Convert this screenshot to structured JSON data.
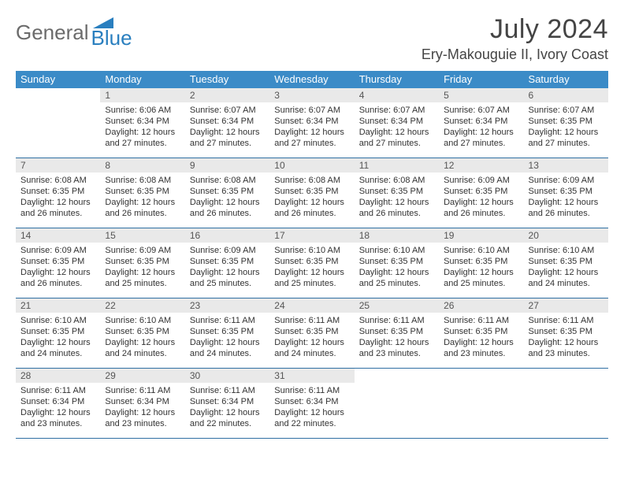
{
  "logo": {
    "text_gray": "General",
    "text_blue": "Blue",
    "triangle_color": "#2a7fbf"
  },
  "title": "July 2024",
  "location": "Ery-Makouguie II, Ivory Coast",
  "colors": {
    "header_bg": "#3b8bc7",
    "header_text": "#ffffff",
    "daynum_bg": "#e9e9e9",
    "week_border": "#2f6fa3",
    "body_text": "#333333",
    "title_text": "#444444",
    "logo_gray": "#6b6b6b"
  },
  "weekdays": [
    "Sunday",
    "Monday",
    "Tuesday",
    "Wednesday",
    "Thursday",
    "Friday",
    "Saturday"
  ],
  "weeks": [
    [
      null,
      {
        "n": "1",
        "sr": "Sunrise: 6:06 AM",
        "ss": "Sunset: 6:34 PM",
        "dl": "Daylight: 12 hours and 27 minutes."
      },
      {
        "n": "2",
        "sr": "Sunrise: 6:07 AM",
        "ss": "Sunset: 6:34 PM",
        "dl": "Daylight: 12 hours and 27 minutes."
      },
      {
        "n": "3",
        "sr": "Sunrise: 6:07 AM",
        "ss": "Sunset: 6:34 PM",
        "dl": "Daylight: 12 hours and 27 minutes."
      },
      {
        "n": "4",
        "sr": "Sunrise: 6:07 AM",
        "ss": "Sunset: 6:34 PM",
        "dl": "Daylight: 12 hours and 27 minutes."
      },
      {
        "n": "5",
        "sr": "Sunrise: 6:07 AM",
        "ss": "Sunset: 6:34 PM",
        "dl": "Daylight: 12 hours and 27 minutes."
      },
      {
        "n": "6",
        "sr": "Sunrise: 6:07 AM",
        "ss": "Sunset: 6:35 PM",
        "dl": "Daylight: 12 hours and 27 minutes."
      }
    ],
    [
      {
        "n": "7",
        "sr": "Sunrise: 6:08 AM",
        "ss": "Sunset: 6:35 PM",
        "dl": "Daylight: 12 hours and 26 minutes."
      },
      {
        "n": "8",
        "sr": "Sunrise: 6:08 AM",
        "ss": "Sunset: 6:35 PM",
        "dl": "Daylight: 12 hours and 26 minutes."
      },
      {
        "n": "9",
        "sr": "Sunrise: 6:08 AM",
        "ss": "Sunset: 6:35 PM",
        "dl": "Daylight: 12 hours and 26 minutes."
      },
      {
        "n": "10",
        "sr": "Sunrise: 6:08 AM",
        "ss": "Sunset: 6:35 PM",
        "dl": "Daylight: 12 hours and 26 minutes."
      },
      {
        "n": "11",
        "sr": "Sunrise: 6:08 AM",
        "ss": "Sunset: 6:35 PM",
        "dl": "Daylight: 12 hours and 26 minutes."
      },
      {
        "n": "12",
        "sr": "Sunrise: 6:09 AM",
        "ss": "Sunset: 6:35 PM",
        "dl": "Daylight: 12 hours and 26 minutes."
      },
      {
        "n": "13",
        "sr": "Sunrise: 6:09 AM",
        "ss": "Sunset: 6:35 PM",
        "dl": "Daylight: 12 hours and 26 minutes."
      }
    ],
    [
      {
        "n": "14",
        "sr": "Sunrise: 6:09 AM",
        "ss": "Sunset: 6:35 PM",
        "dl": "Daylight: 12 hours and 26 minutes."
      },
      {
        "n": "15",
        "sr": "Sunrise: 6:09 AM",
        "ss": "Sunset: 6:35 PM",
        "dl": "Daylight: 12 hours and 25 minutes."
      },
      {
        "n": "16",
        "sr": "Sunrise: 6:09 AM",
        "ss": "Sunset: 6:35 PM",
        "dl": "Daylight: 12 hours and 25 minutes."
      },
      {
        "n": "17",
        "sr": "Sunrise: 6:10 AM",
        "ss": "Sunset: 6:35 PM",
        "dl": "Daylight: 12 hours and 25 minutes."
      },
      {
        "n": "18",
        "sr": "Sunrise: 6:10 AM",
        "ss": "Sunset: 6:35 PM",
        "dl": "Daylight: 12 hours and 25 minutes."
      },
      {
        "n": "19",
        "sr": "Sunrise: 6:10 AM",
        "ss": "Sunset: 6:35 PM",
        "dl": "Daylight: 12 hours and 25 minutes."
      },
      {
        "n": "20",
        "sr": "Sunrise: 6:10 AM",
        "ss": "Sunset: 6:35 PM",
        "dl": "Daylight: 12 hours and 24 minutes."
      }
    ],
    [
      {
        "n": "21",
        "sr": "Sunrise: 6:10 AM",
        "ss": "Sunset: 6:35 PM",
        "dl": "Daylight: 12 hours and 24 minutes."
      },
      {
        "n": "22",
        "sr": "Sunrise: 6:10 AM",
        "ss": "Sunset: 6:35 PM",
        "dl": "Daylight: 12 hours and 24 minutes."
      },
      {
        "n": "23",
        "sr": "Sunrise: 6:11 AM",
        "ss": "Sunset: 6:35 PM",
        "dl": "Daylight: 12 hours and 24 minutes."
      },
      {
        "n": "24",
        "sr": "Sunrise: 6:11 AM",
        "ss": "Sunset: 6:35 PM",
        "dl": "Daylight: 12 hours and 24 minutes."
      },
      {
        "n": "25",
        "sr": "Sunrise: 6:11 AM",
        "ss": "Sunset: 6:35 PM",
        "dl": "Daylight: 12 hours and 23 minutes."
      },
      {
        "n": "26",
        "sr": "Sunrise: 6:11 AM",
        "ss": "Sunset: 6:35 PM",
        "dl": "Daylight: 12 hours and 23 minutes."
      },
      {
        "n": "27",
        "sr": "Sunrise: 6:11 AM",
        "ss": "Sunset: 6:35 PM",
        "dl": "Daylight: 12 hours and 23 minutes."
      }
    ],
    [
      {
        "n": "28",
        "sr": "Sunrise: 6:11 AM",
        "ss": "Sunset: 6:34 PM",
        "dl": "Daylight: 12 hours and 23 minutes."
      },
      {
        "n": "29",
        "sr": "Sunrise: 6:11 AM",
        "ss": "Sunset: 6:34 PM",
        "dl": "Daylight: 12 hours and 23 minutes."
      },
      {
        "n": "30",
        "sr": "Sunrise: 6:11 AM",
        "ss": "Sunset: 6:34 PM",
        "dl": "Daylight: 12 hours and 22 minutes."
      },
      {
        "n": "31",
        "sr": "Sunrise: 6:11 AM",
        "ss": "Sunset: 6:34 PM",
        "dl": "Daylight: 12 hours and 22 minutes."
      },
      null,
      null,
      null
    ]
  ]
}
